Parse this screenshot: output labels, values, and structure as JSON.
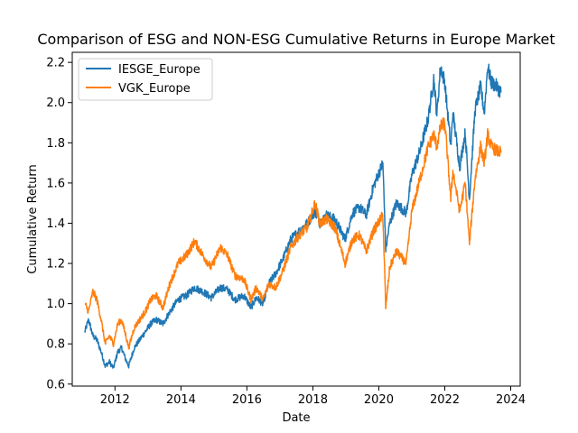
{
  "chart_data": {
    "type": "line",
    "title": "Comparison of ESG and NON-ESG Cumulative Returns in Europe Market",
    "xlabel": "Date",
    "ylabel": "Cumulative Return",
    "xlim": [
      "2010-09-15",
      "2024-04-15"
    ],
    "ylim": [
      0.59,
      2.25
    ],
    "xticks": [
      "2012",
      "2014",
      "2016",
      "2018",
      "2020",
      "2022",
      "2024"
    ],
    "yticks": [
      "0.6",
      "0.8",
      "1.0",
      "1.2",
      "1.4",
      "1.6",
      "1.8",
      "2.0",
      "2.2"
    ],
    "grid": false,
    "legend_position": "upper-left",
    "series": [
      {
        "name": "IESGE_Europe",
        "color": "#1f77b4",
        "points": [
          [
            "2011-02-01",
            0.86
          ],
          [
            "2011-03-15",
            0.92
          ],
          [
            "2011-05-01",
            0.84
          ],
          [
            "2011-06-15",
            0.82
          ],
          [
            "2011-08-01",
            0.76
          ],
          [
            "2011-09-15",
            0.69
          ],
          [
            "2011-11-01",
            0.71
          ],
          [
            "2011-12-15",
            0.68
          ],
          [
            "2012-02-01",
            0.76
          ],
          [
            "2012-03-15",
            0.78
          ],
          [
            "2012-05-01",
            0.72
          ],
          [
            "2012-06-01",
            0.69
          ],
          [
            "2012-08-01",
            0.78
          ],
          [
            "2012-10-01",
            0.82
          ],
          [
            "2012-12-01",
            0.86
          ],
          [
            "2013-02-01",
            0.9
          ],
          [
            "2013-04-01",
            0.92
          ],
          [
            "2013-06-15",
            0.9
          ],
          [
            "2013-09-01",
            0.96
          ],
          [
            "2013-12-01",
            1.02
          ],
          [
            "2014-03-01",
            1.04
          ],
          [
            "2014-06-01",
            1.08
          ],
          [
            "2014-09-01",
            1.06
          ],
          [
            "2014-12-01",
            1.03
          ],
          [
            "2015-03-15",
            1.08
          ],
          [
            "2015-06-01",
            1.07
          ],
          [
            "2015-08-20",
            1.02
          ],
          [
            "2015-12-01",
            1.04
          ],
          [
            "2016-02-15",
            0.98
          ],
          [
            "2016-04-15",
            1.03
          ],
          [
            "2016-06-27",
            1.0
          ],
          [
            "2016-09-01",
            1.1
          ],
          [
            "2016-11-15",
            1.15
          ],
          [
            "2017-02-01",
            1.22
          ],
          [
            "2017-05-01",
            1.32
          ],
          [
            "2017-08-01",
            1.36
          ],
          [
            "2017-11-01",
            1.4
          ],
          [
            "2018-01-25",
            1.46
          ],
          [
            "2018-03-20",
            1.4
          ],
          [
            "2018-06-01",
            1.44
          ],
          [
            "2018-09-01",
            1.42
          ],
          [
            "2018-12-24",
            1.32
          ],
          [
            "2019-03-15",
            1.45
          ],
          [
            "2019-06-01",
            1.48
          ],
          [
            "2019-08-15",
            1.44
          ],
          [
            "2019-11-01",
            1.58
          ],
          [
            "2020-02-15",
            1.7
          ],
          [
            "2020-03-18",
            1.27
          ],
          [
            "2020-05-01",
            1.4
          ],
          [
            "2020-07-15",
            1.5
          ],
          [
            "2020-10-30",
            1.45
          ],
          [
            "2021-01-01",
            1.64
          ],
          [
            "2021-04-01",
            1.76
          ],
          [
            "2021-07-01",
            1.92
          ],
          [
            "2021-09-01",
            2.12
          ],
          [
            "2021-10-05",
            1.94
          ],
          [
            "2021-11-15",
            2.18
          ],
          [
            "2022-01-01",
            2.1
          ],
          [
            "2022-03-08",
            1.78
          ],
          [
            "2022-04-01",
            1.95
          ],
          [
            "2022-06-15",
            1.68
          ],
          [
            "2022-08-15",
            1.85
          ],
          [
            "2022-10-01",
            1.52
          ],
          [
            "2022-12-01",
            1.96
          ],
          [
            "2023-02-01",
            2.08
          ],
          [
            "2023-03-15",
            1.95
          ],
          [
            "2023-04-20",
            2.18
          ],
          [
            "2023-06-01",
            2.1
          ],
          [
            "2023-08-01",
            2.08
          ],
          [
            "2023-09-15",
            2.05
          ]
        ]
      },
      {
        "name": "VGK_Europe",
        "color": "#ff7f0e",
        "points": [
          [
            "2011-02-01",
            1.0
          ],
          [
            "2011-03-15",
            0.96
          ],
          [
            "2011-05-01",
            1.06
          ],
          [
            "2011-06-15",
            1.02
          ],
          [
            "2011-08-01",
            0.92
          ],
          [
            "2011-09-15",
            0.8
          ],
          [
            "2011-11-01",
            0.84
          ],
          [
            "2011-12-15",
            0.8
          ],
          [
            "2012-02-01",
            0.9
          ],
          [
            "2012-03-15",
            0.92
          ],
          [
            "2012-05-01",
            0.84
          ],
          [
            "2012-06-01",
            0.78
          ],
          [
            "2012-08-01",
            0.88
          ],
          [
            "2012-10-01",
            0.92
          ],
          [
            "2012-12-01",
            0.96
          ],
          [
            "2013-02-01",
            1.02
          ],
          [
            "2013-04-01",
            1.04
          ],
          [
            "2013-06-15",
            0.98
          ],
          [
            "2013-09-01",
            1.1
          ],
          [
            "2013-12-01",
            1.2
          ],
          [
            "2014-03-01",
            1.24
          ],
          [
            "2014-06-01",
            1.31
          ],
          [
            "2014-09-01",
            1.24
          ],
          [
            "2014-12-01",
            1.18
          ],
          [
            "2015-03-15",
            1.28
          ],
          [
            "2015-06-01",
            1.24
          ],
          [
            "2015-08-20",
            1.14
          ],
          [
            "2015-12-01",
            1.12
          ],
          [
            "2016-02-15",
            1.02
          ],
          [
            "2016-04-15",
            1.08
          ],
          [
            "2016-06-27",
            1.02
          ],
          [
            "2016-09-01",
            1.1
          ],
          [
            "2016-11-15",
            1.08
          ],
          [
            "2017-02-01",
            1.16
          ],
          [
            "2017-05-01",
            1.28
          ],
          [
            "2017-08-01",
            1.34
          ],
          [
            "2017-11-01",
            1.38
          ],
          [
            "2018-01-25",
            1.5
          ],
          [
            "2018-03-20",
            1.4
          ],
          [
            "2018-06-01",
            1.42
          ],
          [
            "2018-09-01",
            1.38
          ],
          [
            "2018-12-24",
            1.2
          ],
          [
            "2019-03-15",
            1.32
          ],
          [
            "2019-06-01",
            1.34
          ],
          [
            "2019-08-15",
            1.26
          ],
          [
            "2019-11-01",
            1.36
          ],
          [
            "2020-02-15",
            1.44
          ],
          [
            "2020-03-18",
            0.98
          ],
          [
            "2020-05-01",
            1.18
          ],
          [
            "2020-07-15",
            1.26
          ],
          [
            "2020-10-30",
            1.2
          ],
          [
            "2021-01-01",
            1.46
          ],
          [
            "2021-04-01",
            1.62
          ],
          [
            "2021-07-01",
            1.78
          ],
          [
            "2021-09-01",
            1.84
          ],
          [
            "2021-10-05",
            1.78
          ],
          [
            "2021-11-15",
            1.88
          ],
          [
            "2022-01-01",
            1.9
          ],
          [
            "2022-03-08",
            1.52
          ],
          [
            "2022-04-01",
            1.66
          ],
          [
            "2022-06-15",
            1.46
          ],
          [
            "2022-08-15",
            1.6
          ],
          [
            "2022-10-01",
            1.3
          ],
          [
            "2022-12-01",
            1.62
          ],
          [
            "2023-02-01",
            1.78
          ],
          [
            "2023-03-15",
            1.7
          ],
          [
            "2023-04-20",
            1.84
          ],
          [
            "2023-06-01",
            1.78
          ],
          [
            "2023-08-01",
            1.76
          ],
          [
            "2023-09-15",
            1.75
          ]
        ]
      }
    ]
  }
}
